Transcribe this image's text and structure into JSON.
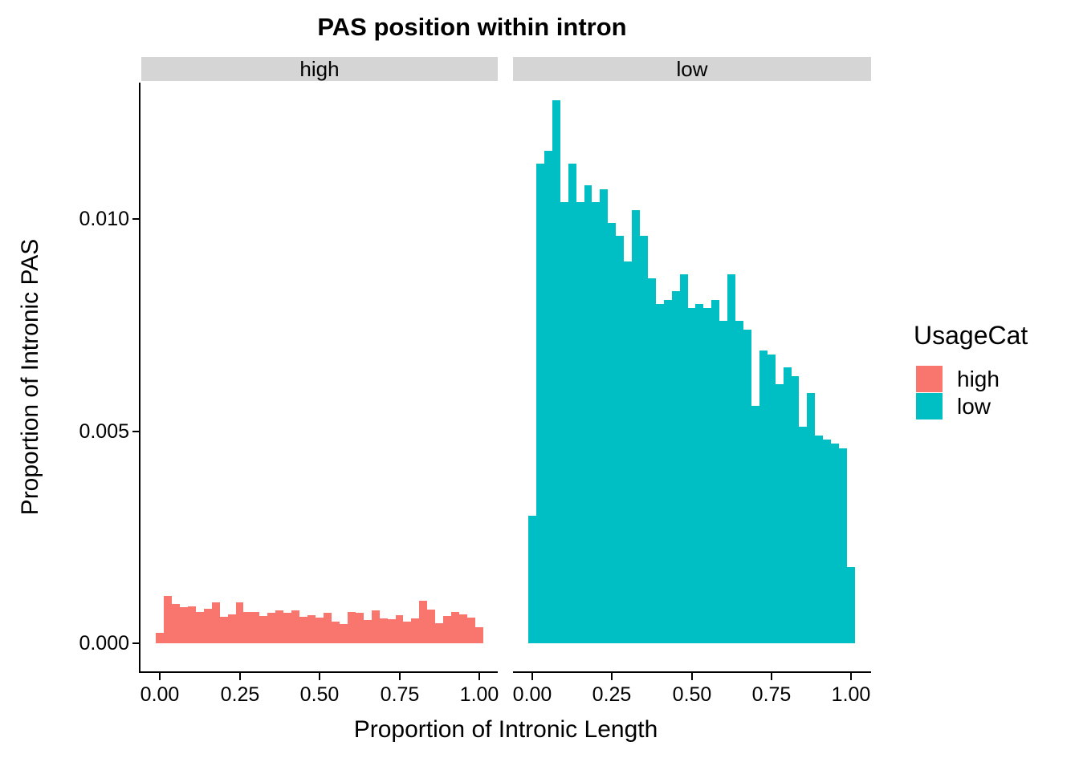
{
  "title": "PAS position within intron",
  "chart_data": {
    "type": "bar",
    "subtype": "faceted-histogram",
    "title": "PAS position within intron",
    "xlabel": "Proportion of Intronic Length",
    "ylabel": "Proportion of Intronic PAS",
    "grid": false,
    "legend_position": "right",
    "x_ticks": {
      "values": [
        0,
        0.25,
        0.5,
        0.75,
        1.0
      ],
      "labels": [
        "0.00",
        "0.25",
        "0.50",
        "0.75",
        "1.00"
      ]
    },
    "y_ticks": {
      "values": [
        0,
        0.005,
        0.01
      ],
      "labels": [
        "0.000",
        "0.005",
        "0.010"
      ]
    },
    "xlim": [
      -0.06,
      1.06
    ],
    "ylim": [
      -0.0007,
      0.0139
    ],
    "bin_width": 0.025,
    "bin_centers": [
      0.0,
      0.025,
      0.05,
      0.075,
      0.1,
      0.125,
      0.15,
      0.175,
      0.2,
      0.225,
      0.25,
      0.275,
      0.3,
      0.325,
      0.35,
      0.375,
      0.4,
      0.425,
      0.45,
      0.475,
      0.5,
      0.525,
      0.55,
      0.575,
      0.6,
      0.625,
      0.65,
      0.675,
      0.7,
      0.725,
      0.75,
      0.775,
      0.8,
      0.825,
      0.85,
      0.875,
      0.9,
      0.925,
      0.95,
      0.975,
      1.0
    ],
    "facets": [
      {
        "label": "high",
        "color": "#F8766D",
        "values": [
          0.00025,
          0.00112,
          0.00092,
          0.00085,
          0.00087,
          0.00074,
          0.00081,
          0.00096,
          0.00063,
          0.00068,
          0.00096,
          0.00074,
          0.00073,
          0.00065,
          0.00072,
          0.00078,
          0.00072,
          0.00077,
          0.00062,
          0.00066,
          0.00061,
          0.00071,
          0.00051,
          0.00046,
          0.00074,
          0.00071,
          0.00054,
          0.00078,
          0.00059,
          0.00057,
          0.00067,
          0.00051,
          0.00058,
          0.001,
          0.00079,
          0.00047,
          0.00065,
          0.00073,
          0.00068,
          0.00061,
          0.00038
        ]
      },
      {
        "label": "low",
        "color": "#00BFC4",
        "values": [
          0.003,
          0.0113,
          0.0116,
          0.0128,
          0.0104,
          0.0113,
          0.0104,
          0.0108,
          0.0104,
          0.0107,
          0.0099,
          0.0096,
          0.009,
          0.0102,
          0.0096,
          0.0086,
          0.008,
          0.0081,
          0.0083,
          0.0087,
          0.0079,
          0.008,
          0.0079,
          0.0081,
          0.0076,
          0.0087,
          0.0076,
          0.0074,
          0.0056,
          0.0069,
          0.0068,
          0.0061,
          0.0065,
          0.0063,
          0.0051,
          0.0059,
          0.0049,
          0.0048,
          0.0047,
          0.0046,
          0.0018
        ]
      }
    ],
    "legend": {
      "title": "UsageCat",
      "entries": [
        {
          "label": "high",
          "color": "#F8766D"
        },
        {
          "label": "low",
          "color": "#00BFC4"
        }
      ]
    }
  }
}
